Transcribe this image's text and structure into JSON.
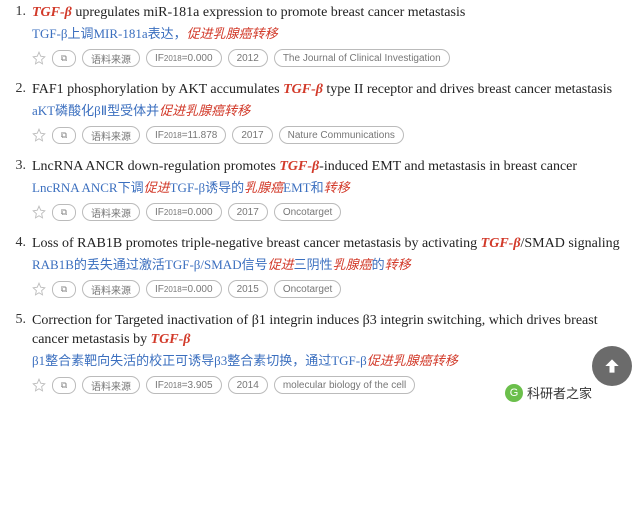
{
  "items": [
    {
      "num": "1.",
      "title_en_parts": [
        {
          "t": "TGF-β",
          "cls": "em-red"
        },
        {
          "t": " upregulates miR-181a expression to promote breast cancer metastasis",
          "cls": ""
        }
      ],
      "title_cn_parts": [
        {
          "t": "TGF-β上调MIR-181a表达，",
          "cls": "cn-blue"
        },
        {
          "t": "促进乳腺癌转移",
          "cls": "cn-red"
        }
      ],
      "source_label": "语料来源",
      "if_label": "IF",
      "if_year": "2018",
      "if_value": "=0.000",
      "year": "2012",
      "journal": "The Journal of Clinical Investigation"
    },
    {
      "num": "2.",
      "title_en_parts": [
        {
          "t": "FAF1 phosphorylation by AKT accumulates ",
          "cls": ""
        },
        {
          "t": "TGF-β",
          "cls": "em-red"
        },
        {
          "t": " type II receptor and drives breast cancer metastasis",
          "cls": ""
        }
      ],
      "title_cn_parts": [
        {
          "t": "aKT磷酸化βⅡ型受体并",
          "cls": "cn-blue"
        },
        {
          "t": "促进乳腺癌转移",
          "cls": "cn-red"
        }
      ],
      "source_label": "语料来源",
      "if_label": "IF",
      "if_year": "2018",
      "if_value": "=11.878",
      "year": "2017",
      "journal": "Nature Communications"
    },
    {
      "num": "3.",
      "title_en_parts": [
        {
          "t": "LncRNA ANCR down-regulation promotes ",
          "cls": ""
        },
        {
          "t": "TGF-β",
          "cls": "em-red"
        },
        {
          "t": "-induced EMT and metastasis in breast cancer",
          "cls": ""
        }
      ],
      "title_cn_parts": [
        {
          "t": "LncRNA ANCR下调",
          "cls": "cn-blue"
        },
        {
          "t": "促进",
          "cls": "cn-red"
        },
        {
          "t": "TGF-β诱导的",
          "cls": "cn-blue"
        },
        {
          "t": "乳腺癌",
          "cls": "cn-red"
        },
        {
          "t": "EMT和",
          "cls": "cn-blue"
        },
        {
          "t": "转移",
          "cls": "cn-red"
        }
      ],
      "source_label": "语料来源",
      "if_label": "IF",
      "if_year": "2018",
      "if_value": "=0.000",
      "year": "2017",
      "journal": "Oncotarget"
    },
    {
      "num": "4.",
      "title_en_parts": [
        {
          "t": "Loss of RAB1B promotes triple-negative breast cancer metastasis by activating ",
          "cls": ""
        },
        {
          "t": "TGF-β",
          "cls": "em-red"
        },
        {
          "t": "/SMAD signaling",
          "cls": ""
        }
      ],
      "title_cn_parts": [
        {
          "t": "RAB1B的丢失通过激活TGF-β/SMAD信号",
          "cls": "cn-blue"
        },
        {
          "t": "促进",
          "cls": "cn-red"
        },
        {
          "t": "三阴性",
          "cls": "cn-blue"
        },
        {
          "t": "乳腺癌",
          "cls": "cn-red"
        },
        {
          "t": "的",
          "cls": "cn-blue"
        },
        {
          "t": "转移",
          "cls": "cn-red"
        }
      ],
      "source_label": "语料来源",
      "if_label": "IF",
      "if_year": "2018",
      "if_value": "=0.000",
      "year": "2015",
      "journal": "Oncotarget"
    },
    {
      "num": "5.",
      "title_en_parts": [
        {
          "t": "Correction for Targeted inactivation of β1 integrin induces β3 integrin switching, which drives breast cancer metastasis by ",
          "cls": ""
        },
        {
          "t": "TGF-β",
          "cls": "em-red"
        }
      ],
      "title_cn_parts": [
        {
          "t": "β1整合素靶向失活的校正可诱导β3整合素切换，通过TGF-β",
          "cls": "cn-blue"
        },
        {
          "t": "促进乳腺癌转移",
          "cls": "cn-red"
        }
      ],
      "source_label": "语料来源",
      "if_label": "IF",
      "if_year": "2018",
      "if_value": "=3.905",
      "year": "2014",
      "journal": "molecular biology of the cell"
    }
  ],
  "footer_text": "科研者之家",
  "footer_initial": "G"
}
